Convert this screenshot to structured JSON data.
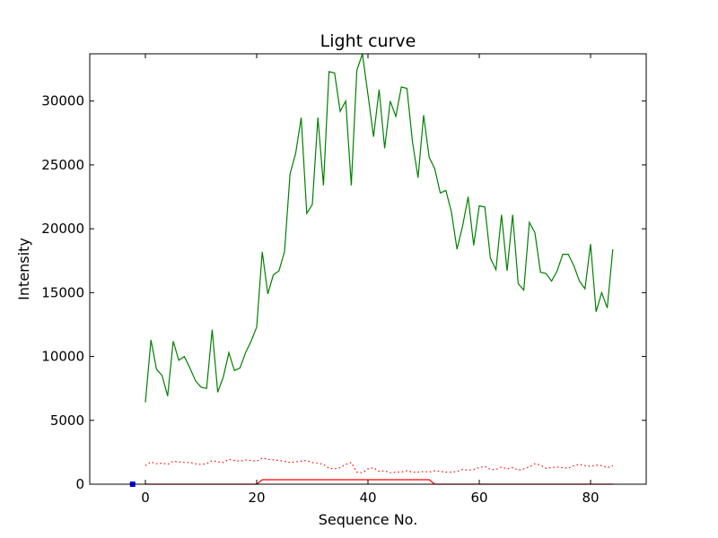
{
  "chart_data": {
    "type": "line",
    "title": "Light curve",
    "xlabel": "Sequence No.",
    "ylabel": "Intensity",
    "xlim": [
      -10,
      90
    ],
    "ylim": [
      0,
      33700
    ],
    "xticks": [
      0,
      20,
      40,
      60,
      80
    ],
    "yticks": [
      0,
      5000,
      10000,
      15000,
      20000,
      25000,
      30000
    ],
    "grid": false,
    "colors": {
      "signal": "#008000",
      "background": "#ff0000",
      "flag": "#ff0000",
      "marker": "#0000ff"
    },
    "series": [
      {
        "style": "solid",
        "color": "#008000",
        "x": [
          0,
          1,
          2,
          3,
          4,
          5,
          6,
          7,
          8,
          9,
          10,
          11,
          12,
          13,
          14,
          15,
          16,
          17,
          18,
          19,
          20,
          21,
          22,
          23,
          24,
          25,
          26,
          27,
          28,
          29,
          30,
          31,
          32,
          33,
          34,
          35,
          36,
          37,
          38,
          39,
          40,
          41,
          42,
          43,
          44,
          45,
          46,
          47,
          48,
          49,
          50,
          51,
          52,
          53,
          54,
          55,
          56,
          57,
          58,
          59,
          60,
          61,
          62,
          63,
          64,
          65,
          66,
          67,
          68,
          69,
          70,
          71,
          72,
          73,
          74,
          75,
          76,
          77,
          78,
          79,
          80,
          81,
          82,
          83,
          84
        ],
        "y": [
          6400,
          11300,
          9000,
          8500,
          6900,
          11200,
          9700,
          10000,
          9100,
          8100,
          7600,
          7500,
          12100,
          7200,
          8400,
          10300,
          8900,
          9100,
          10300,
          11200,
          12300,
          18200,
          14900,
          16400,
          16700,
          18200,
          24300,
          25900,
          28700,
          21200,
          21900,
          28700,
          23400,
          32300,
          32200,
          29200,
          30000,
          23400,
          32400,
          33700,
          30500,
          27200,
          30900,
          26300,
          30000,
          28800,
          31100,
          31000,
          26800,
          24000,
          28900,
          25600,
          24700,
          22800,
          23000,
          21300,
          18400,
          20200,
          22500,
          18700,
          21800,
          21700,
          17700,
          16800,
          21100,
          16700,
          21100,
          15700,
          15200,
          20500,
          19700,
          16600,
          16500,
          15900,
          16700,
          18000,
          18000,
          17100,
          15900,
          15300,
          18800,
          13500,
          15000,
          13800,
          18400
        ]
      },
      {
        "style": "dotted",
        "color": "#ff0000",
        "x": [
          0,
          1,
          2,
          3,
          4,
          5,
          6,
          7,
          8,
          9,
          10,
          11,
          12,
          13,
          14,
          15,
          16,
          17,
          18,
          19,
          20,
          21,
          22,
          23,
          24,
          25,
          26,
          27,
          28,
          29,
          30,
          31,
          32,
          33,
          34,
          35,
          36,
          37,
          38,
          39,
          40,
          41,
          42,
          43,
          44,
          45,
          46,
          47,
          48,
          49,
          50,
          51,
          52,
          53,
          54,
          55,
          56,
          57,
          58,
          59,
          60,
          61,
          62,
          63,
          64,
          65,
          66,
          67,
          68,
          69,
          70,
          71,
          72,
          73,
          74,
          75,
          76,
          77,
          78,
          79,
          80,
          81,
          82,
          83,
          84
        ],
        "y": [
          1450,
          1750,
          1600,
          1650,
          1550,
          1800,
          1750,
          1700,
          1700,
          1600,
          1550,
          1600,
          1850,
          1750,
          1700,
          1950,
          1850,
          1800,
          1900,
          1850,
          1800,
          2050,
          1950,
          1900,
          1850,
          1800,
          1700,
          1750,
          1800,
          1850,
          1700,
          1650,
          1550,
          1250,
          1200,
          1300,
          1550,
          1700,
          950,
          900,
          1200,
          1300,
          1000,
          1050,
          900,
          950,
          950,
          1050,
          950,
          950,
          1000,
          950,
          1050,
          1000,
          950,
          950,
          1000,
          1150,
          1100,
          1150,
          1300,
          1400,
          1150,
          1150,
          1350,
          1200,
          1300,
          1100,
          1200,
          1350,
          1600,
          1500,
          1250,
          1300,
          1350,
          1300,
          1250,
          1450,
          1550,
          1450,
          1400,
          1500,
          1450,
          1300,
          1450
        ]
      },
      {
        "style": "solid",
        "color": "#ff0000",
        "x": [
          0,
          20,
          21,
          51,
          52,
          84
        ],
        "y": [
          0,
          0,
          350,
          350,
          0,
          0
        ]
      },
      {
        "style": "marker",
        "color": "#0000ff",
        "x": [
          -2.3
        ],
        "y": [
          0
        ]
      }
    ]
  }
}
